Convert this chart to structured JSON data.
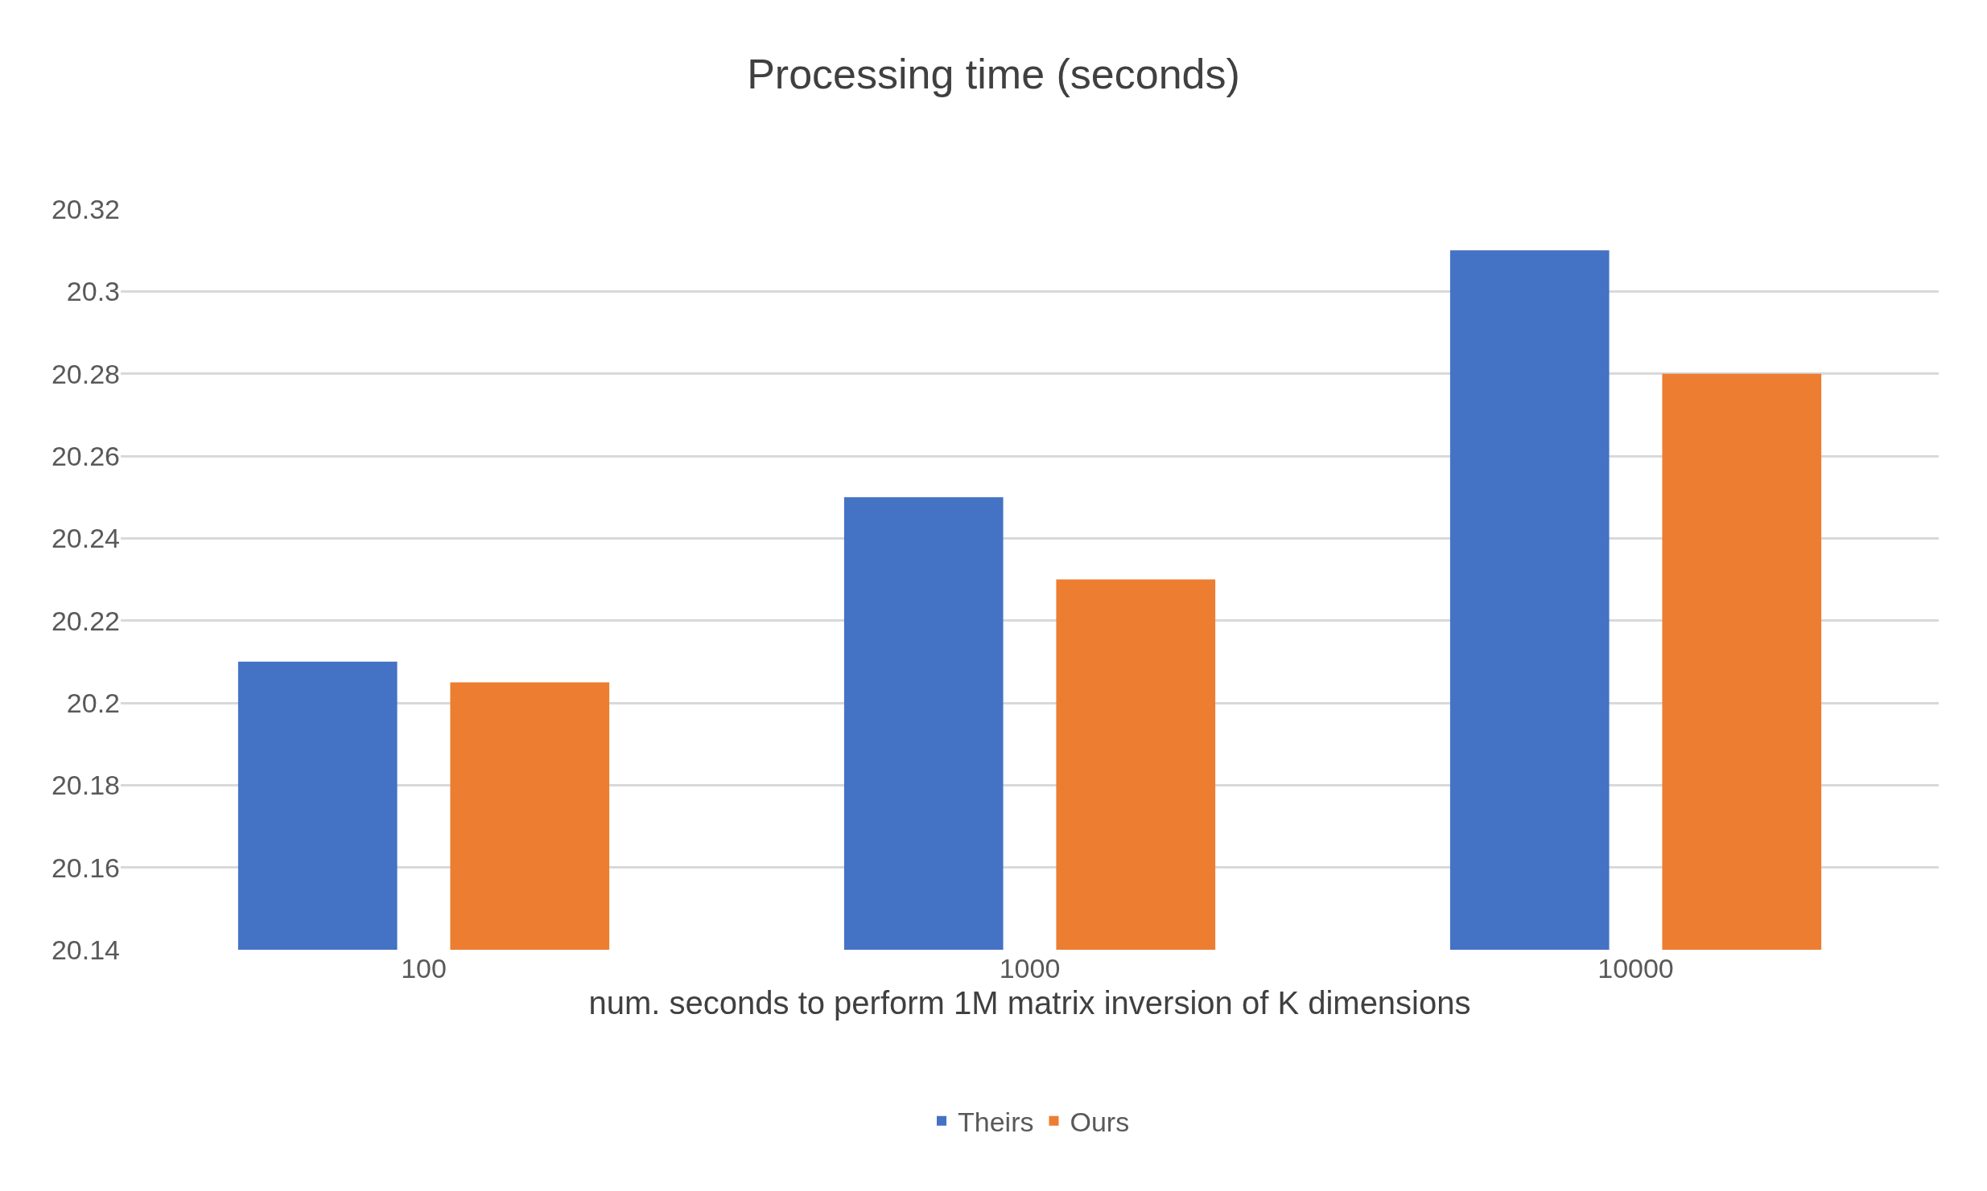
{
  "chart_data": {
    "type": "bar",
    "title": "Processing time (seconds)",
    "xlabel": "num. seconds to perform 1M matrix inversion of K dimensions",
    "categories": [
      "100",
      "1000",
      "10000"
    ],
    "series": [
      {
        "name": "Theirs",
        "color": "#4472c4",
        "values": [
          20.21,
          20.25,
          20.31
        ]
      },
      {
        "name": "Ours",
        "color": "#ed7d31",
        "values": [
          20.205,
          20.23,
          20.28
        ]
      }
    ],
    "ylim": [
      20.14,
      20.32
    ],
    "yticks": [
      20.14,
      20.16,
      20.18,
      20.2,
      20.22,
      20.24,
      20.26,
      20.28,
      20.3,
      20.32
    ],
    "grid": "y",
    "legend": "bottom"
  }
}
